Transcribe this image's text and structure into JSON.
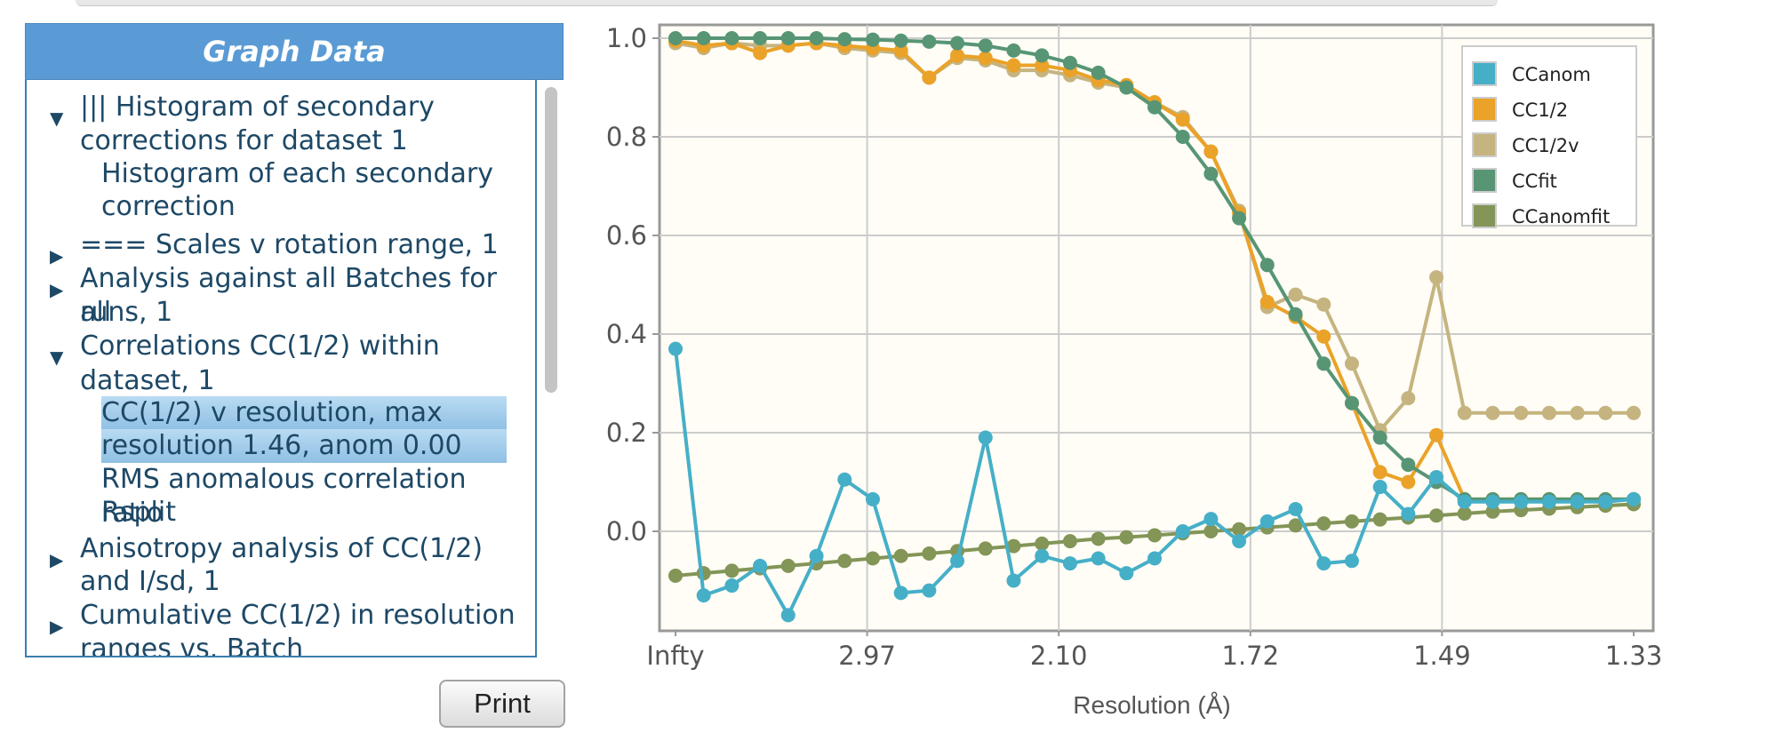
{
  "panel": {
    "title": "Graph Data",
    "tree": [
      {
        "text": "||| Histogram of secondary",
        "level": 0,
        "arrow": "down"
      },
      {
        "text": "corrections for dataset 1",
        "level": 0
      },
      {
        "text": "Histogram of each secondary",
        "level": 1
      },
      {
        "text": "correction",
        "level": 1
      },
      {
        "text": "=== Scales v rotation range, 1",
        "level": 0,
        "arrow": "right"
      },
      {
        "text": "Analysis against all Batches for all",
        "level": 0,
        "arrow": "right"
      },
      {
        "text": "runs, 1",
        "level": 0
      },
      {
        "text": "Correlations CC(1/2) within",
        "level": 0,
        "arrow": "down"
      },
      {
        "text": "dataset, 1",
        "level": 0
      },
      {
        "text": "CC(1/2) v resolution, max",
        "level": 1,
        "selected": true
      },
      {
        "text": "resolution 1.46, anom 0.00",
        "level": 1,
        "selected": true
      },
      {
        "text": "RMS anomalous correlation ratio",
        "level": 1
      },
      {
        "text": "Rsplit",
        "level": 1
      },
      {
        "text": "Anisotropy analysis of CC(1/2)",
        "level": 0,
        "arrow": "right"
      },
      {
        "text": "and I/sd, 1",
        "level": 0
      },
      {
        "text": "Cumulative CC(1/2) in resolution",
        "level": 0,
        "arrow": "right"
      },
      {
        "text": "ranges vs. Batch",
        "level": 0
      }
    ]
  },
  "print_label": "Print",
  "chart_data": {
    "type": "line",
    "xlabel": "Resolution (Å)",
    "ylabel": "",
    "ylim": [
      -0.18,
      1.02
    ],
    "yticks": [
      "1.0",
      "0.8",
      "0.6",
      "0.4",
      "0.2",
      "0.0"
    ],
    "xtick_labels": [
      "Infty",
      "2.97",
      "2.10",
      "1.72",
      "1.49",
      "1.33"
    ],
    "grid": true,
    "legend_position": "top-right",
    "x": [
      0.0,
      0.0294,
      0.0588,
      0.0882,
      0.1176,
      0.1471,
      0.1765,
      0.2059,
      0.2353,
      0.2647,
      0.2941,
      0.3235,
      0.3529,
      0.3824,
      0.4118,
      0.4412,
      0.4706,
      0.5,
      0.5294,
      0.5588,
      0.5882,
      0.6176,
      0.6471,
      0.6765,
      0.7059,
      0.7353,
      0.7647,
      0.7941,
      0.8235,
      0.8529,
      0.8824,
      0.9118,
      0.9412,
      0.9706,
      1.0
    ],
    "series": [
      {
        "name": "CCanom",
        "color": "#46afc8",
        "values": [
          0.37,
          -0.13,
          -0.11,
          -0.07,
          -0.17,
          -0.05,
          0.105,
          0.065,
          -0.125,
          -0.12,
          -0.06,
          0.19,
          -0.1,
          -0.05,
          -0.065,
          -0.055,
          -0.085,
          -0.055,
          0.0,
          0.025,
          -0.02,
          0.02,
          0.045,
          -0.065,
          -0.06,
          0.09,
          0.035,
          0.11,
          0.06,
          0.06,
          0.06,
          0.06,
          0.06,
          0.06,
          0.065
        ]
      },
      {
        "name": "CC1/2",
        "color": "#eaa228",
        "values": [
          0.995,
          0.985,
          0.99,
          0.97,
          0.985,
          0.99,
          0.985,
          0.98,
          0.975,
          0.92,
          0.965,
          0.96,
          0.945,
          0.945,
          0.935,
          0.915,
          0.905,
          0.87,
          0.835,
          0.77,
          0.645,
          0.465,
          0.435,
          0.395,
          0.26,
          0.12,
          0.1,
          0.195,
          0.065,
          0.065,
          0.065,
          0.065,
          0.065,
          0.065,
          0.065
        ]
      },
      {
        "name": "CC1/2v",
        "color": "#c5b47f",
        "values": [
          0.99,
          0.98,
          0.99,
          0.985,
          0.985,
          0.99,
          0.98,
          0.975,
          0.97,
          0.92,
          0.96,
          0.955,
          0.935,
          0.935,
          0.925,
          0.91,
          0.9,
          0.87,
          0.84,
          0.77,
          0.65,
          0.455,
          0.48,
          0.46,
          0.34,
          0.205,
          0.27,
          0.515,
          0.24,
          0.24,
          0.24,
          0.24,
          0.24,
          0.24,
          0.24
        ]
      },
      {
        "name": "CCfit",
        "color": "#579575",
        "values": [
          1.0,
          1.0,
          1.0,
          1.0,
          1.0,
          1.0,
          0.998,
          0.997,
          0.995,
          0.993,
          0.99,
          0.985,
          0.975,
          0.965,
          0.95,
          0.93,
          0.9,
          0.86,
          0.8,
          0.725,
          0.635,
          0.54,
          0.44,
          0.34,
          0.26,
          0.19,
          0.135,
          0.1,
          0.065,
          0.065,
          0.065,
          0.065,
          0.065,
          0.065,
          0.065
        ]
      },
      {
        "name": "CCanomfit",
        "color": "#839557",
        "values": [
          -0.09,
          -0.085,
          -0.08,
          -0.075,
          -0.07,
          -0.065,
          -0.06,
          -0.055,
          -0.05,
          -0.045,
          -0.04,
          -0.035,
          -0.03,
          -0.025,
          -0.02,
          -0.015,
          -0.012,
          -0.008,
          -0.004,
          0.0,
          0.004,
          0.008,
          0.012,
          0.016,
          0.02,
          0.024,
          0.028,
          0.032,
          0.036,
          0.04,
          0.043,
          0.046,
          0.049,
          0.052,
          0.055
        ]
      }
    ]
  }
}
